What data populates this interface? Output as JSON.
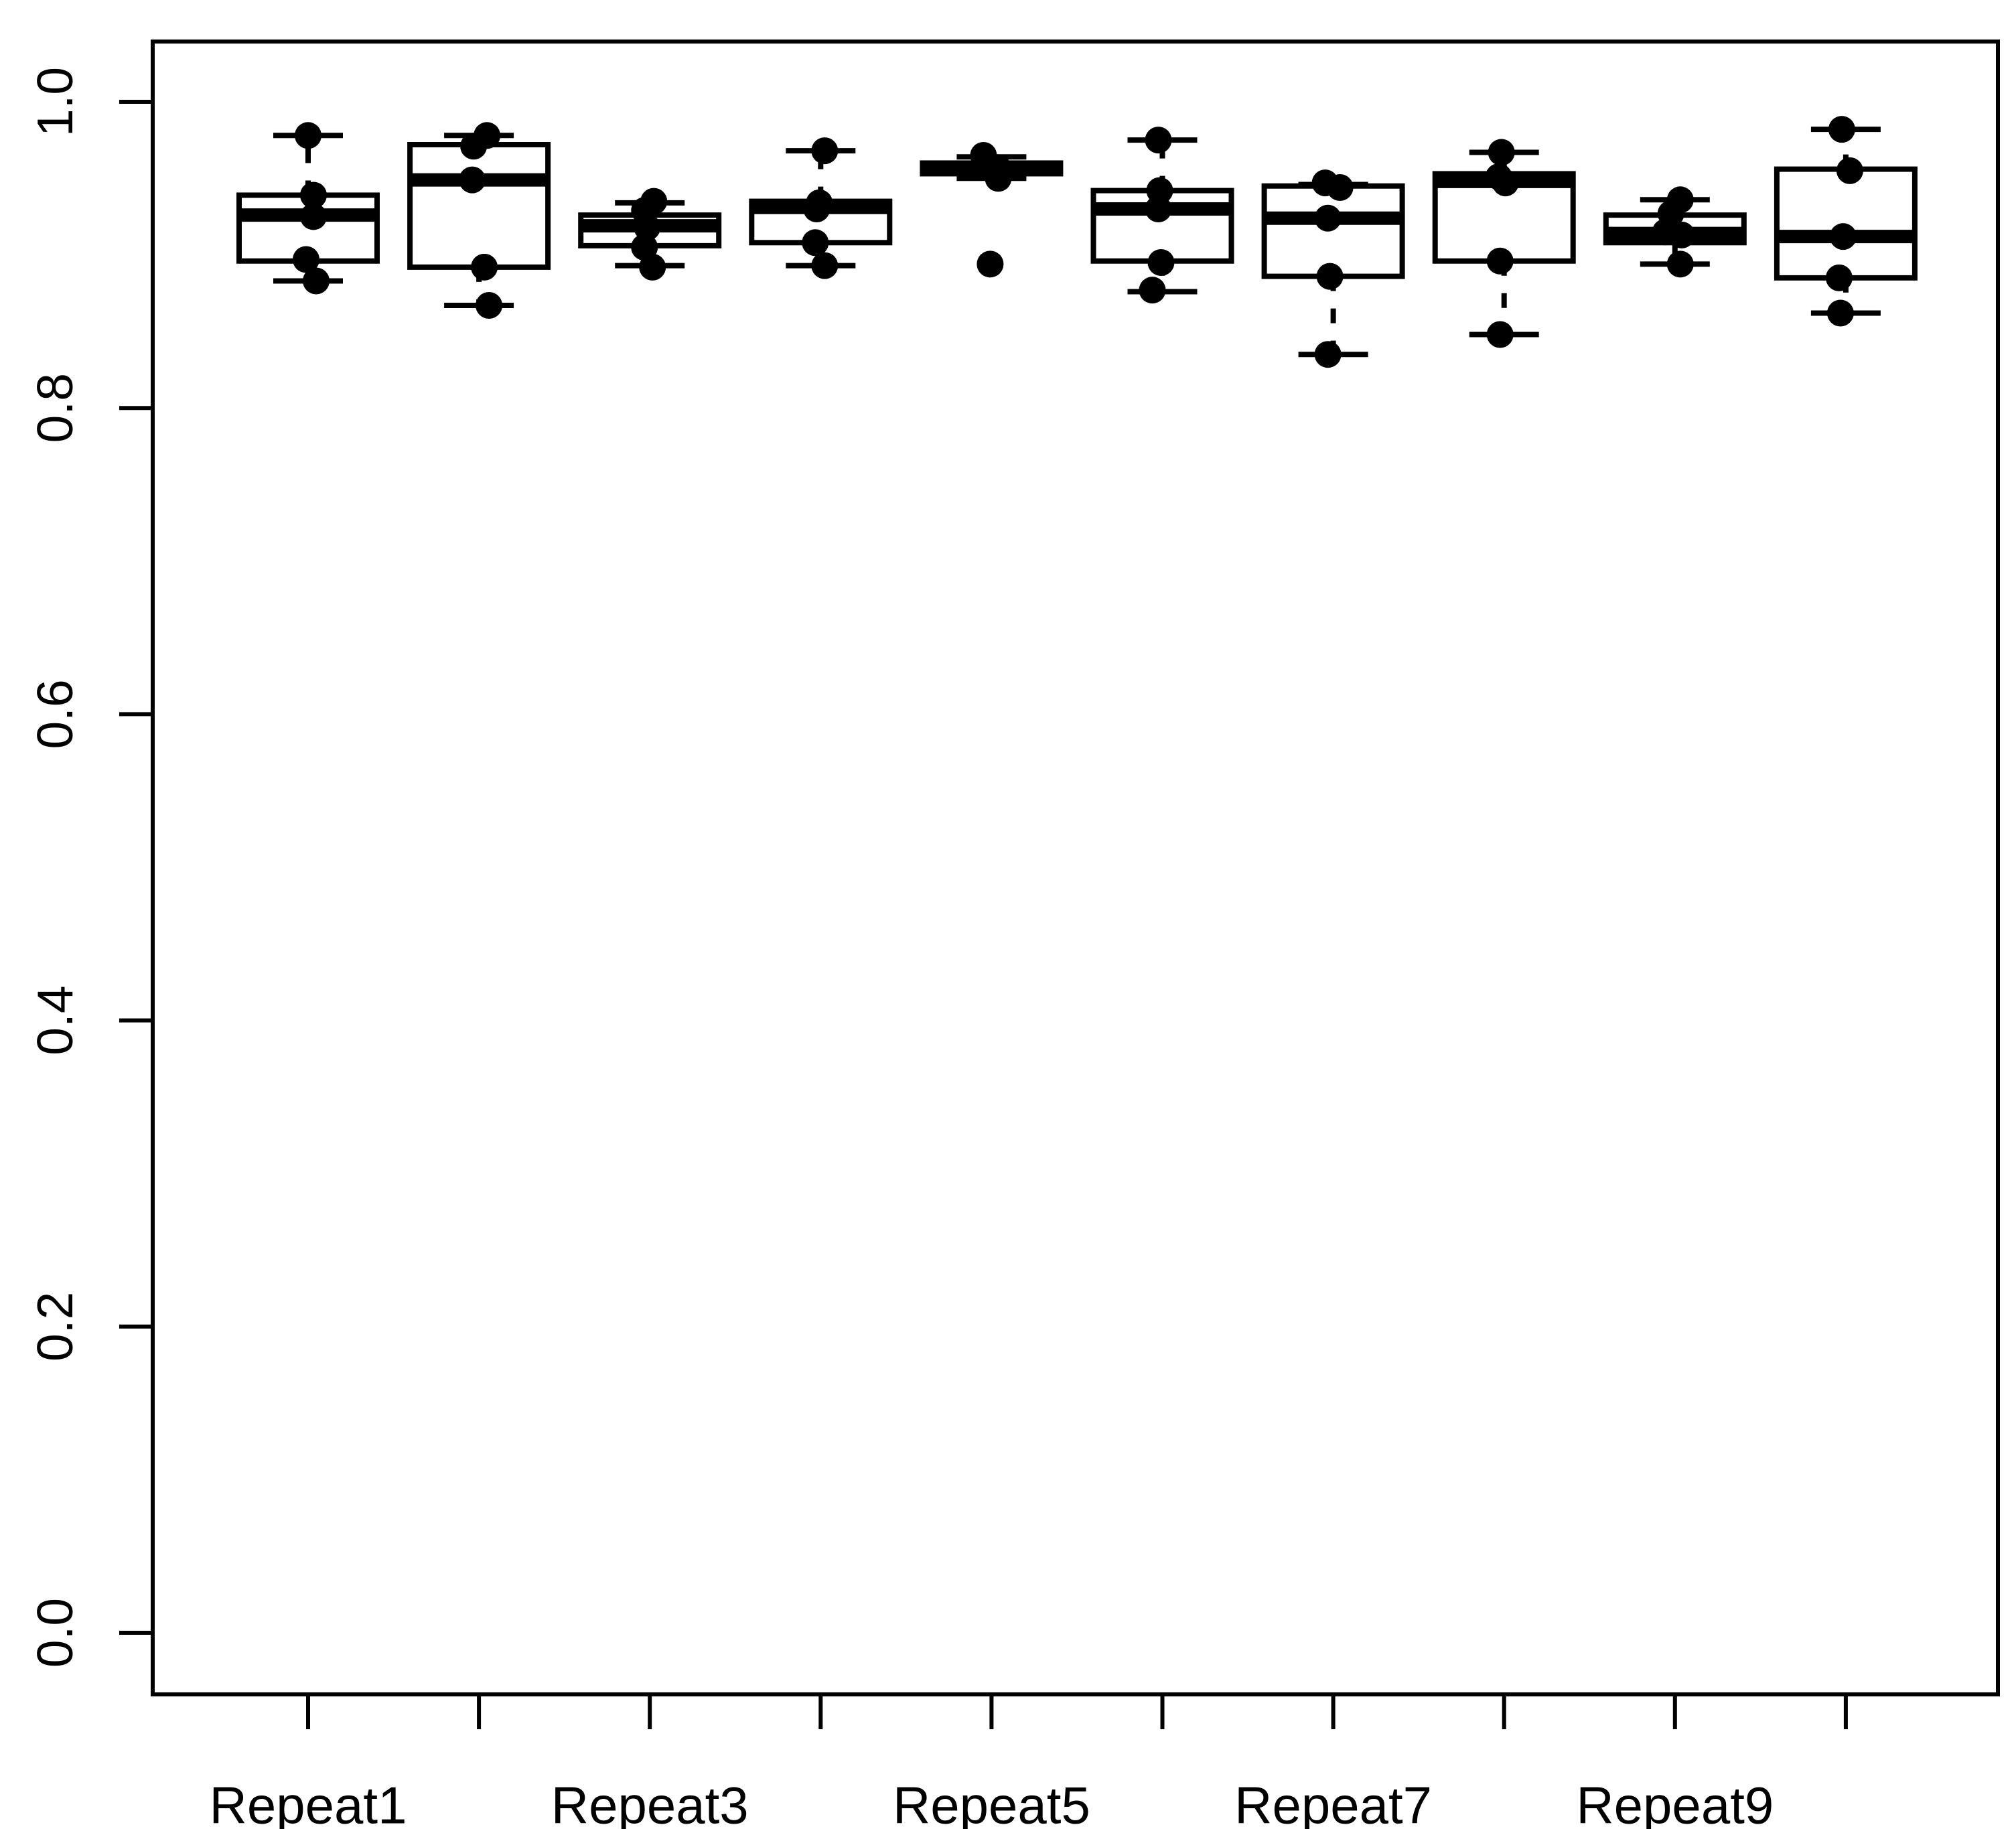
{
  "chart_data": {
    "type": "boxplot",
    "title": "",
    "xlabel": "",
    "ylabel": "",
    "ylim": [
      0.0,
      1.0
    ],
    "grid": false,
    "legend": null,
    "colors": {
      "stroke": "#000000",
      "box_fill": "#ffffff",
      "background": "#ffffff",
      "point_fill": "#000000"
    },
    "y_ticks": [
      {
        "value": 0.0,
        "label": "0.0"
      },
      {
        "value": 0.2,
        "label": "0.2"
      },
      {
        "value": 0.4,
        "label": "0.4"
      },
      {
        "value": 0.6,
        "label": "0.6"
      },
      {
        "value": 0.8,
        "label": "0.8"
      },
      {
        "value": 1.0,
        "label": "1.0"
      }
    ],
    "x_tick_labels_shown": [
      "Repeat1",
      "Repeat3",
      "Repeat5",
      "Repeat7",
      "Repeat9"
    ],
    "groups": [
      {
        "label": "Repeat1",
        "box": {
          "whisker_low": 0.883,
          "q1": 0.896,
          "median": 0.926,
          "q3": 0.939,
          "whisker_high": 0.978
        },
        "points": [
          [
            0.978,
            0
          ],
          [
            0.939,
            8
          ],
          [
            0.925,
            8
          ],
          [
            0.897,
            -3
          ],
          [
            0.883,
            12
          ]
        ]
      },
      {
        "label": null,
        "box": {
          "whisker_low": 0.867,
          "q1": 0.892,
          "median": 0.949,
          "q3": 0.972,
          "whisker_high": 0.978
        },
        "points": [
          [
            0.978,
            12
          ],
          [
            0.971,
            -8
          ],
          [
            0.949,
            -10
          ],
          [
            0.892,
            8
          ],
          [
            0.867,
            15
          ]
        ]
      },
      {
        "label": "Repeat3",
        "box": {
          "whisker_low": 0.893,
          "q1": 0.906,
          "median": 0.919,
          "q3": 0.926,
          "whisker_high": 0.934
        },
        "points": [
          [
            0.935,
            6
          ],
          [
            0.929,
            -8
          ],
          [
            0.918,
            -4
          ],
          [
            0.905,
            -8
          ],
          [
            0.892,
            4
          ]
        ]
      },
      {
        "label": null,
        "box": {
          "whisker_low": 0.893,
          "q1": 0.908,
          "median": 0.931,
          "q3": 0.935,
          "whisker_high": 0.968
        },
        "points": [
          [
            0.968,
            6
          ],
          [
            0.934,
            -2
          ],
          [
            0.93,
            -6
          ],
          [
            0.908,
            -8
          ],
          [
            0.893,
            6
          ]
        ]
      },
      {
        "label": "Repeat5",
        "box": {
          "whisker_low": 0.95,
          "q1": 0.953,
          "median": 0.957,
          "q3": 0.96,
          "whisker_high": 0.964
        },
        "points": [
          [
            0.965,
            -12
          ],
          [
            0.958,
            -2
          ],
          [
            0.957,
            9
          ],
          [
            0.95,
            10
          ],
          [
            0.894,
            -2
          ]
        ]
      },
      {
        "label": null,
        "box": {
          "whisker_low": 0.876,
          "q1": 0.896,
          "median": 0.93,
          "q3": 0.942,
          "whisker_high": 0.975
        },
        "points": [
          [
            0.975,
            -6
          ],
          [
            0.942,
            -4
          ],
          [
            0.93,
            -6
          ],
          [
            0.895,
            -2
          ],
          [
            0.877,
            -15
          ]
        ]
      },
      {
        "label": "Repeat7",
        "box": {
          "whisker_low": 0.835,
          "q1": 0.886,
          "median": 0.924,
          "q3": 0.945,
          "whisker_high": 0.946
        },
        "points": [
          [
            0.947,
            -12
          ],
          [
            0.944,
            10
          ],
          [
            0.924,
            -8
          ],
          [
            0.886,
            -5
          ],
          [
            0.835,
            -8
          ]
        ]
      },
      {
        "label": null,
        "box": {
          "whisker_low": 0.848,
          "q1": 0.896,
          "median": 0.948,
          "q3": 0.953,
          "whisker_high": 0.967
        },
        "points": [
          [
            0.967,
            -4
          ],
          [
            0.951,
            -8
          ],
          [
            0.947,
            2
          ],
          [
            0.896,
            -6
          ],
          [
            0.848,
            -6
          ]
        ]
      },
      {
        "label": "Repeat9",
        "box": {
          "whisker_low": 0.894,
          "q1": 0.908,
          "median": 0.914,
          "q3": 0.926,
          "whisker_high": 0.936
        },
        "points": [
          [
            0.936,
            8
          ],
          [
            0.927,
            -6
          ],
          [
            0.915,
            -14
          ],
          [
            0.913,
            10
          ],
          [
            0.894,
            8
          ]
        ]
      },
      {
        "label": null,
        "box": {
          "whisker_low": 0.862,
          "q1": 0.885,
          "median": 0.912,
          "q3": 0.956,
          "whisker_high": 0.982
        },
        "points": [
          [
            0.982,
            -6
          ],
          [
            0.955,
            6
          ],
          [
            0.912,
            -4
          ],
          [
            0.885,
            -10
          ],
          [
            0.862,
            -8
          ]
        ]
      }
    ]
  }
}
